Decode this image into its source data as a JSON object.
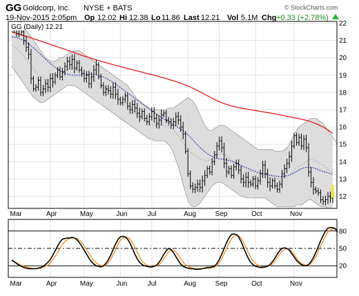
{
  "header": {
    "symbol": "GG",
    "company": "Goldcorp, Inc.",
    "exchange": "NYSE + BATS",
    "date_time": "19-Nov-2015 2:05pm",
    "op_label": "Op",
    "op_value": "12.02",
    "hi_label": "Hi",
    "hi_value": "12.38",
    "lo_label": "Lo",
    "lo_value": "11.86",
    "last_label": "Last",
    "last_value": "12.21",
    "vol_label": "Vol",
    "vol_value": "5.1M",
    "chg_label": "Chg",
    "chg_value": "+0.33 (+2.78%)",
    "watermark": "© StockCharts.com"
  },
  "legend": {
    "text": "GG (Daily) 12.21"
  },
  "colors": {
    "price_bar": "#000000",
    "ma_long": "#e31a1c",
    "ma_short": "#1f2f9f",
    "bb_fill": "#d7d7d7",
    "bb_edge": "#9a9a9a",
    "bb_mid": "#9a9a9a",
    "stoch_k": "#000000",
    "stoch_d": "#f28c1e",
    "up_arrow": "#2bb52b",
    "last_marker": "#f2e600"
  },
  "chart_data": [
    {
      "type": "ohlc",
      "title": "GG (Daily) 12.21",
      "x_labels": [
        "Mar",
        "Apr",
        "May",
        "Jun",
        "Jul",
        "Aug",
        "Sep",
        "Oct",
        "Nov"
      ],
      "ylim": [
        11.3,
        22.1
      ],
      "y_ticks": [
        12,
        13,
        14,
        15,
        16,
        17,
        18,
        19,
        20,
        21,
        22
      ],
      "grid": true,
      "closes": [
        21.8,
        21.6,
        21.4,
        21.9,
        21.5,
        21.0,
        20.6,
        20.2,
        18.8,
        18.2,
        18.3,
        18.7,
        18.0,
        18.2,
        18.5,
        18.3,
        18.8,
        18.6,
        19.0,
        19.3,
        18.9,
        19.2,
        19.5,
        19.8,
        19.6,
        19.9,
        19.4,
        19.7,
        19.3,
        19.1,
        18.8,
        19.0,
        18.5,
        18.9,
        19.3,
        19.6,
        18.9,
        18.4,
        18.0,
        18.2,
        18.1,
        17.9,
        18.3,
        17.9,
        17.6,
        17.4,
        17.6,
        17.8,
        17.2,
        17.0,
        17.3,
        17.1,
        16.8,
        16.6,
        16.9,
        16.5,
        16.3,
        16.6,
        16.9,
        16.5,
        16.2,
        16.4,
        16.7,
        16.8,
        16.4,
        16.3,
        16.1,
        16.3,
        16.6,
        16.4,
        16.0,
        15.6,
        14.6,
        13.3,
        12.6,
        12.4,
        12.5,
        12.7,
        12.5,
        12.9,
        13.2,
        13.6,
        13.4,
        14.0,
        14.4,
        14.9,
        15.2,
        14.8,
        13.9,
        13.4,
        13.6,
        13.2,
        13.7,
        13.9,
        13.5,
        13.0,
        12.8,
        13.1,
        12.8,
        12.7,
        13.0,
        12.6,
        12.9,
        13.3,
        13.8,
        13.3,
        12.8,
        12.6,
        12.9,
        12.6,
        12.4,
        12.7,
        13.3,
        13.6,
        13.9,
        14.3,
        14.9,
        15.5,
        15.1,
        15.4,
        14.9,
        15.3,
        14.8,
        13.4,
        12.8,
        12.4,
        12.3,
        12.2,
        11.8,
        11.7,
        11.8,
        12.0,
        11.9,
        12.21
      ],
      "ma_long": [
        21.5,
        21.46,
        21.41,
        21.37,
        21.32,
        21.28,
        21.24,
        21.19,
        21.15,
        21.1,
        21.06,
        21.01,
        20.96,
        20.92,
        20.87,
        20.82,
        20.77,
        20.73,
        20.68,
        20.63,
        20.58,
        20.54,
        20.49,
        20.44,
        20.39,
        20.34,
        20.29,
        20.24,
        20.19,
        20.14,
        20.09,
        20.05,
        20.01,
        19.96,
        19.92,
        19.88,
        19.84,
        19.8,
        19.76,
        19.72,
        19.68,
        19.64,
        19.6,
        19.56,
        19.53,
        19.49,
        19.45,
        19.42,
        19.38,
        19.34,
        19.31,
        19.27,
        19.24,
        19.2,
        19.17,
        19.13,
        19.09,
        19.06,
        19.02,
        18.99,
        18.95,
        18.91,
        18.87,
        18.84,
        18.8,
        18.75,
        18.71,
        18.67,
        18.62,
        18.58,
        18.53,
        18.48,
        18.43,
        18.37,
        18.31,
        18.24,
        18.18,
        18.11,
        18.03,
        17.96,
        17.88,
        17.81,
        17.73,
        17.66,
        17.59,
        17.52,
        17.46,
        17.4,
        17.35,
        17.3,
        17.26,
        17.22,
        17.18,
        17.15,
        17.12,
        17.09,
        17.07,
        17.04,
        17.02,
        17.0,
        16.97,
        16.95,
        16.93,
        16.9,
        16.88,
        16.86,
        16.83,
        16.81,
        16.78,
        16.76,
        16.73,
        16.7,
        16.68,
        16.65,
        16.62,
        16.59,
        16.57,
        16.54,
        16.51,
        16.48,
        16.45,
        16.42,
        16.39,
        16.35,
        16.3,
        16.25,
        16.2,
        16.14,
        16.07,
        16.0,
        15.92,
        15.83,
        15.73,
        15.62
      ],
      "ma_short": [
        21.2,
        21.19,
        21.16,
        21.12,
        21.06,
        20.99,
        20.9,
        20.8,
        20.69,
        20.57,
        20.45,
        20.32,
        20.19,
        20.05,
        19.92,
        19.79,
        19.67,
        19.55,
        19.44,
        19.34,
        19.25,
        19.17,
        19.11,
        19.06,
        19.02,
        19.0,
        18.99,
        18.99,
        19.0,
        19.01,
        19.02,
        19.03,
        19.04,
        19.04,
        19.03,
        19.01,
        18.98,
        18.94,
        18.88,
        18.82,
        18.75,
        18.67,
        18.58,
        18.48,
        18.38,
        18.28,
        18.18,
        18.07,
        17.97,
        17.86,
        17.76,
        17.65,
        17.55,
        17.44,
        17.34,
        17.23,
        17.13,
        17.03,
        16.93,
        16.83,
        16.73,
        16.64,
        16.55,
        16.46,
        16.38,
        16.3,
        16.22,
        16.14,
        16.06,
        15.98,
        15.89,
        15.79,
        15.68,
        15.55,
        15.41,
        15.26,
        15.11,
        14.96,
        14.82,
        14.69,
        14.57,
        14.46,
        14.37,
        14.29,
        14.23,
        14.19,
        14.16,
        14.14,
        14.12,
        14.1,
        14.07,
        14.03,
        13.98,
        13.92,
        13.85,
        13.78,
        13.72,
        13.66,
        13.6,
        13.54,
        13.49,
        13.44,
        13.39,
        13.35,
        13.31,
        13.28,
        13.25,
        13.22,
        13.19,
        13.17,
        13.15,
        13.14,
        13.14,
        13.16,
        13.19,
        13.23,
        13.28,
        13.35,
        13.43,
        13.51,
        13.58,
        13.64,
        13.67,
        13.68,
        13.67,
        13.64,
        13.59,
        13.54,
        13.48,
        13.43,
        13.39,
        13.35,
        13.31,
        13.27
      ],
      "bb_upper": [
        22.0,
        22.0,
        22.0,
        21.9,
        21.8,
        21.7,
        21.6,
        21.4,
        21.2,
        21.0,
        20.8,
        20.6,
        20.4,
        20.2,
        20.0,
        19.9,
        19.8,
        19.8,
        19.8,
        19.9,
        20.0,
        20.0,
        20.1,
        20.2,
        20.3,
        20.3,
        20.4,
        20.4,
        20.4,
        20.3,
        20.2,
        20.1,
        20.0,
        19.9,
        19.8,
        19.7,
        19.6,
        19.5,
        19.4,
        19.3,
        19.2,
        19.1,
        19.0,
        18.9,
        18.8,
        18.7,
        18.6,
        18.5,
        18.4,
        18.2,
        18.0,
        17.8,
        17.6,
        17.5,
        17.4,
        17.3,
        17.2,
        17.1,
        17.0,
        17.0,
        17.0,
        17.0,
        17.0,
        17.0,
        17.0,
        17.1,
        17.1,
        17.1,
        17.2,
        17.3,
        17.4,
        17.5,
        17.6,
        17.7,
        17.6,
        17.5,
        17.3,
        17.0,
        16.7,
        16.4,
        16.1,
        15.9,
        15.8,
        15.8,
        15.9,
        16.0,
        16.1,
        16.1,
        16.1,
        16.0,
        15.9,
        15.8,
        15.7,
        15.6,
        15.5,
        15.4,
        15.3,
        15.2,
        15.1,
        15.0,
        14.9,
        14.8,
        14.7,
        14.7,
        14.7,
        14.7,
        14.7,
        14.7,
        14.7,
        14.6,
        14.6,
        14.6,
        14.6,
        14.7,
        14.8,
        15.0,
        15.3,
        15.6,
        15.8,
        16.0,
        16.1,
        16.2,
        16.3,
        16.4,
        16.5,
        16.5,
        16.5,
        16.4,
        16.3,
        16.2,
        16.0,
        15.8,
        15.6,
        15.4,
        15.2,
        15.0
      ],
      "bb_lower": [
        19.5,
        19.3,
        19.1,
        18.9,
        18.7,
        18.5,
        18.3,
        18.1,
        17.9,
        17.7,
        17.6,
        17.5,
        17.4,
        17.4,
        17.5,
        17.6,
        17.7,
        17.8,
        17.9,
        18.0,
        18.1,
        18.2,
        18.3,
        18.4,
        18.4,
        18.4,
        18.4,
        18.3,
        18.2,
        18.1,
        18.0,
        17.9,
        17.8,
        17.7,
        17.6,
        17.5,
        17.4,
        17.3,
        17.2,
        17.1,
        17.0,
        16.9,
        16.8,
        16.7,
        16.6,
        16.5,
        16.4,
        16.3,
        16.2,
        16.1,
        16.0,
        15.9,
        15.8,
        15.7,
        15.6,
        15.5,
        15.4,
        15.3,
        15.3,
        15.2,
        15.2,
        15.2,
        15.2,
        15.2,
        15.1,
        15.0,
        14.8,
        14.5,
        14.1,
        13.7,
        13.2,
        12.7,
        12.2,
        11.8,
        11.5,
        11.4,
        11.4,
        11.5,
        11.6,
        11.8,
        12.0,
        12.2,
        12.4,
        12.6,
        12.7,
        12.8,
        12.8,
        12.8,
        12.7,
        12.6,
        12.5,
        12.4,
        12.3,
        12.2,
        12.1,
        12.0,
        12.0,
        11.9,
        11.9,
        11.9,
        11.9,
        11.9,
        11.9,
        11.9,
        11.9,
        11.9,
        11.8,
        11.7,
        11.6,
        11.5,
        11.4,
        11.4,
        11.4,
        11.4,
        11.4,
        11.4,
        11.4,
        11.4,
        11.5,
        11.5,
        11.5,
        11.6,
        11.7,
        11.8,
        11.8,
        11.7,
        11.6,
        11.5,
        11.4,
        11.4,
        11.4,
        11.3,
        11.3,
        11.3,
        11.3,
        11.3
      ]
    },
    {
      "type": "line",
      "x_labels": [
        "Mar",
        "Apr",
        "May",
        "Jun",
        "Jul",
        "Aug",
        "Sep",
        "Oct",
        "Nov"
      ],
      "ylim": [
        0,
        100
      ],
      "y_ticks": [
        20,
        50,
        80
      ],
      "ref_lines": [
        20,
        50,
        80
      ],
      "series": [
        {
          "values": [
            30,
            27,
            24,
            21,
            19,
            17,
            16,
            15,
            15,
            15,
            15,
            16,
            17,
            19,
            22,
            26,
            31,
            38,
            46,
            54,
            61,
            66,
            67,
            68,
            68,
            69,
            68,
            65,
            60,
            54,
            47,
            40,
            33,
            27,
            23,
            20,
            19,
            18,
            20,
            24,
            30,
            38,
            48,
            57,
            65,
            70,
            71,
            70,
            66,
            59,
            50,
            40,
            32,
            26,
            22,
            20,
            19,
            18,
            18,
            19,
            21,
            26,
            32,
            40,
            46,
            50,
            48,
            43,
            36,
            29,
            23,
            19,
            17,
            16,
            15,
            15,
            14,
            14,
            14,
            15,
            16,
            17,
            17,
            18,
            19,
            24,
            31,
            40,
            50,
            60,
            68,
            74,
            75,
            74,
            70,
            62,
            52,
            42,
            33,
            26,
            22,
            19,
            18,
            17,
            17,
            18,
            19,
            22,
            27,
            33,
            40,
            46,
            50,
            51,
            50,
            47,
            41,
            35,
            29,
            25,
            22,
            20,
            20,
            22,
            27,
            34,
            43,
            53,
            63,
            72,
            80,
            85,
            86,
            86,
            84,
            78
          ]
        },
        {
          "values": [
            28,
            27,
            25,
            23,
            21,
            19,
            18,
            17,
            16,
            15,
            15,
            15,
            16,
            17,
            19,
            21,
            25,
            30,
            36,
            43,
            50,
            57,
            62,
            65,
            67,
            68,
            68,
            67,
            64,
            60,
            54,
            48,
            41,
            35,
            29,
            25,
            22,
            20,
            19,
            21,
            25,
            31,
            39,
            48,
            57,
            64,
            68,
            70,
            69,
            66,
            60,
            52,
            43,
            35,
            28,
            24,
            21,
            20,
            19,
            19,
            20,
            22,
            26,
            32,
            38,
            44,
            47,
            47,
            44,
            38,
            32,
            26,
            22,
            19,
            17,
            16,
            15,
            15,
            15,
            15,
            15,
            16,
            16,
            17,
            18,
            21,
            25,
            32,
            41,
            50,
            59,
            66,
            71,
            73,
            72,
            68,
            61,
            52,
            43,
            35,
            28,
            24,
            21,
            19,
            18,
            18,
            19,
            20,
            23,
            28,
            34,
            40,
            45,
            48,
            49,
            48,
            44,
            39,
            33,
            28,
            24,
            22,
            21,
            22,
            24,
            29,
            36,
            45,
            54,
            63,
            71,
            78,
            82,
            84,
            84,
            82
          ]
        }
      ]
    }
  ]
}
